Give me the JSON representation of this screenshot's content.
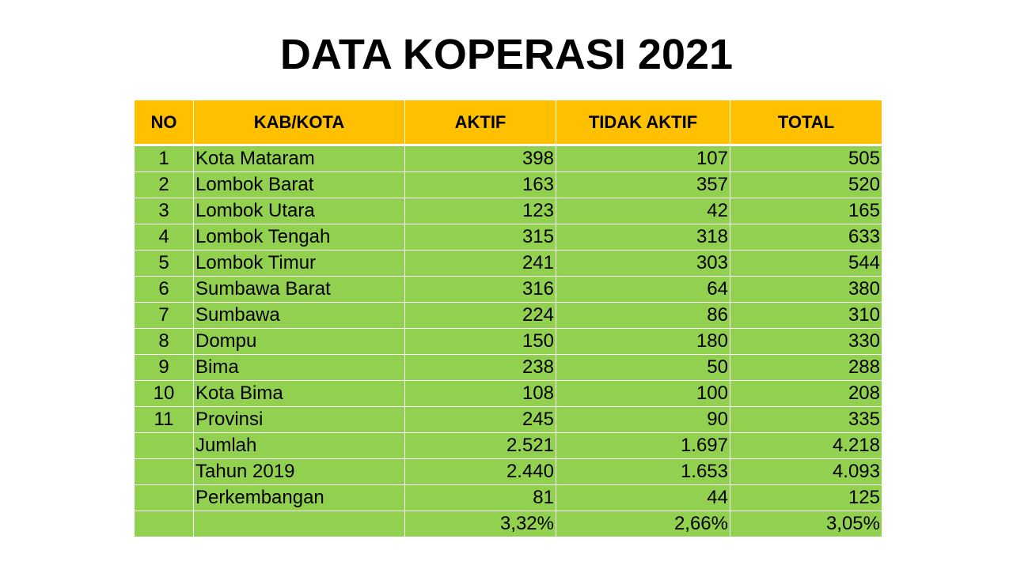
{
  "title": "DATA KOPERASI 2021",
  "table": {
    "headers": {
      "no": "NO",
      "kab": "KAB/KOTA",
      "aktif": "AKTIF",
      "tidak_aktif": "TIDAK AKTIF",
      "total": "TOTAL"
    },
    "rows": [
      {
        "no": "1",
        "kab": "Kota Mataram",
        "aktif": "398",
        "tidak_aktif": "107",
        "total": "505"
      },
      {
        "no": "2",
        "kab": "Lombok Barat",
        "aktif": "163",
        "tidak_aktif": "357",
        "total": "520"
      },
      {
        "no": "3",
        "kab": "Lombok Utara",
        "aktif": "123",
        "tidak_aktif": "42",
        "total": "165"
      },
      {
        "no": "4",
        "kab": "Lombok Tengah",
        "aktif": "315",
        "tidak_aktif": "318",
        "total": "633"
      },
      {
        "no": "5",
        "kab": "Lombok Timur",
        "aktif": "241",
        "tidak_aktif": "303",
        "total": "544"
      },
      {
        "no": "6",
        "kab": "Sumbawa Barat",
        "aktif": "316",
        "tidak_aktif": "64",
        "total": "380"
      },
      {
        "no": "7",
        "kab": "Sumbawa",
        "aktif": "224",
        "tidak_aktif": "86",
        "total": "310"
      },
      {
        "no": "8",
        "kab": "Dompu",
        "aktif": "150",
        "tidak_aktif": "180",
        "total": "330"
      },
      {
        "no": "9",
        "kab": "Bima",
        "aktif": "238",
        "tidak_aktif": "50",
        "total": "288"
      },
      {
        "no": "10",
        "kab": "Kota Bima",
        "aktif": "108",
        "tidak_aktif": "100",
        "total": "208"
      },
      {
        "no": "11",
        "kab": "Provinsi",
        "aktif": "245",
        "tidak_aktif": "90",
        "total": "335"
      },
      {
        "no": "",
        "kab": "Jumlah",
        "aktif": "2.521",
        "tidak_aktif": "1.697",
        "total": "4.218"
      },
      {
        "no": "",
        "kab": "Tahun 2019",
        "aktif": "2.440",
        "tidak_aktif": "1.653",
        "total": "4.093"
      },
      {
        "no": "",
        "kab": "Perkembangan",
        "aktif": "81",
        "tidak_aktif": "44",
        "total": "125"
      },
      {
        "no": "",
        "kab": "",
        "aktif": "3,32%",
        "tidak_aktif": "2,66%",
        "total": "3,05%"
      }
    ]
  },
  "colors": {
    "header_bg": "#ffc000",
    "row_bg": "#92d050",
    "border": "#ffffff"
  }
}
